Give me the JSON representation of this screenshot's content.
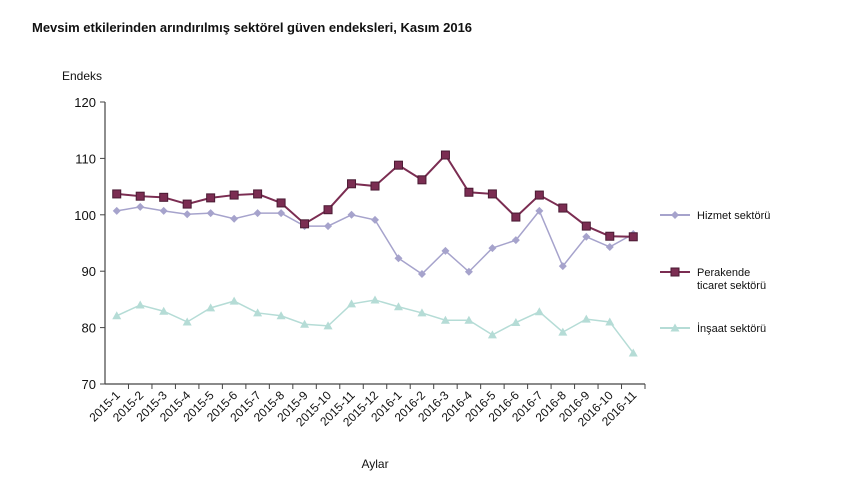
{
  "chart_data": {
    "type": "line",
    "title": "Mevsim etkilerinden arındırılmış sektörel güven endeksleri, Kasım 2016",
    "ylabel": "Endeks",
    "xlabel": "Aylar",
    "ylim": [
      70,
      120
    ],
    "yticks": [
      70,
      80,
      90,
      100,
      110,
      120
    ],
    "grid": false,
    "legend": "right",
    "categories": [
      "2015-1",
      "2015-2",
      "2015-3",
      "2015-4",
      "2015-5",
      "2015-6",
      "2015-7",
      "2015-8",
      "2015-9",
      "2015-10",
      "2015-11",
      "2015-12",
      "2016-1",
      "2016-2",
      "2016-3",
      "2016-4",
      "2016-5",
      "2016-6",
      "2016-7",
      "2016-8",
      "2016-9",
      "2016-10",
      "2016-11"
    ],
    "series": [
      {
        "name": "Hizmet sektörü",
        "color": "#a6a3cc",
        "marker": "diamond",
        "values": [
          100.7,
          101.4,
          100.7,
          100.1,
          100.3,
          99.3,
          100.3,
          100.3,
          98.0,
          98.0,
          100.0,
          99.1,
          92.3,
          89.5,
          93.6,
          89.9,
          94.1,
          95.5,
          100.7,
          90.9,
          96.1,
          94.3,
          96.6
        ]
      },
      {
        "name": "Perakende ticaret sektörü",
        "color": "#7b2d52",
        "marker": "square",
        "values": [
          103.7,
          103.3,
          103.1,
          101.9,
          103.0,
          103.5,
          103.7,
          102.1,
          98.4,
          100.9,
          105.5,
          105.1,
          108.8,
          106.2,
          110.6,
          104.0,
          103.7,
          99.6,
          103.5,
          101.2,
          98.0,
          96.2,
          96.1
        ]
      },
      {
        "name": "İnşaat sektörü",
        "color": "#b5dcd6",
        "marker": "triangle",
        "values": [
          82.1,
          84.0,
          82.9,
          81.0,
          83.5,
          84.7,
          82.6,
          82.1,
          80.6,
          80.3,
          84.2,
          84.9,
          83.7,
          82.6,
          81.3,
          81.3,
          78.7,
          80.9,
          82.8,
          79.2,
          81.5,
          81.0,
          75.5
        ]
      }
    ]
  }
}
